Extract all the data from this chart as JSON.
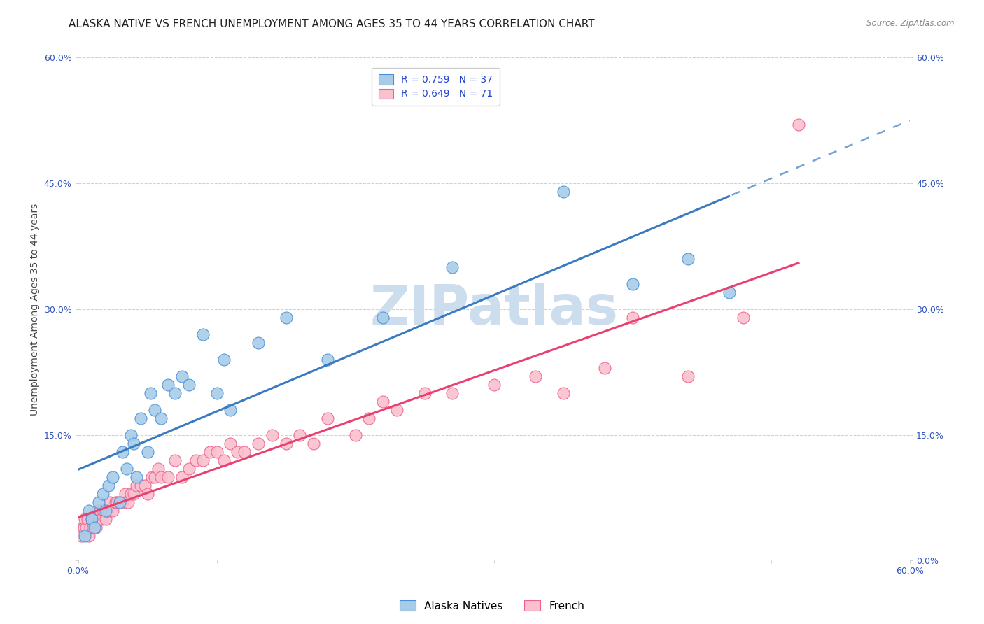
{
  "title": "ALASKA NATIVE VS FRENCH UNEMPLOYMENT AMONG AGES 35 TO 44 YEARS CORRELATION CHART",
  "source": "Source: ZipAtlas.com",
  "ylabel": "Unemployment Among Ages 35 to 44 years",
  "xlim": [
    0.0,
    0.6
  ],
  "ylim": [
    0.0,
    0.6
  ],
  "xticks": [
    0.0,
    0.1,
    0.2,
    0.3,
    0.4,
    0.5,
    0.6
  ],
  "xticklabels": [
    "0.0%",
    "",
    "",
    "",
    "",
    "",
    "60.0%"
  ],
  "yticks": [
    0.0,
    0.15,
    0.3,
    0.45,
    0.6
  ],
  "left_yticklabels": [
    "",
    "15.0%",
    "30.0%",
    "45.0%",
    "60.0%"
  ],
  "right_yticklabels": [
    "0.0%",
    "15.0%",
    "30.0%",
    "45.0%",
    "60.0%"
  ],
  "alaska_color": "#a8cce8",
  "french_color": "#f9c0ce",
  "alaska_edge_color": "#4a90d9",
  "french_edge_color": "#f06090",
  "alaska_line_color": "#3a7abf",
  "french_line_color": "#e84070",
  "alaska_R": 0.759,
  "alaska_N": 37,
  "french_R": 0.649,
  "french_N": 71,
  "alaska_scatter_x": [
    0.005,
    0.008,
    0.01,
    0.012,
    0.015,
    0.018,
    0.02,
    0.022,
    0.025,
    0.03,
    0.032,
    0.035,
    0.038,
    0.04,
    0.042,
    0.045,
    0.05,
    0.052,
    0.055,
    0.06,
    0.065,
    0.07,
    0.075,
    0.08,
    0.09,
    0.1,
    0.105,
    0.11,
    0.13,
    0.15,
    0.18,
    0.22,
    0.27,
    0.35,
    0.4,
    0.44,
    0.47
  ],
  "alaska_scatter_y": [
    0.03,
    0.06,
    0.05,
    0.04,
    0.07,
    0.08,
    0.06,
    0.09,
    0.1,
    0.07,
    0.13,
    0.11,
    0.15,
    0.14,
    0.1,
    0.17,
    0.13,
    0.2,
    0.18,
    0.17,
    0.21,
    0.2,
    0.22,
    0.21,
    0.27,
    0.2,
    0.24,
    0.18,
    0.26,
    0.29,
    0.24,
    0.29,
    0.35,
    0.44,
    0.33,
    0.36,
    0.32
  ],
  "french_scatter_x": [
    0.002,
    0.003,
    0.004,
    0.005,
    0.006,
    0.007,
    0.008,
    0.009,
    0.01,
    0.011,
    0.012,
    0.013,
    0.014,
    0.015,
    0.016,
    0.017,
    0.018,
    0.019,
    0.02,
    0.021,
    0.022,
    0.023,
    0.025,
    0.027,
    0.028,
    0.03,
    0.032,
    0.034,
    0.036,
    0.038,
    0.04,
    0.042,
    0.045,
    0.048,
    0.05,
    0.053,
    0.055,
    0.058,
    0.06,
    0.065,
    0.07,
    0.075,
    0.08,
    0.085,
    0.09,
    0.095,
    0.1,
    0.105,
    0.11,
    0.115,
    0.12,
    0.13,
    0.14,
    0.15,
    0.16,
    0.17,
    0.18,
    0.2,
    0.21,
    0.22,
    0.23,
    0.25,
    0.27,
    0.3,
    0.33,
    0.35,
    0.38,
    0.4,
    0.44,
    0.48,
    0.52
  ],
  "french_scatter_y": [
    0.03,
    0.04,
    0.04,
    0.05,
    0.04,
    0.05,
    0.03,
    0.04,
    0.05,
    0.04,
    0.05,
    0.04,
    0.06,
    0.05,
    0.06,
    0.05,
    0.06,
    0.06,
    0.05,
    0.06,
    0.06,
    0.07,
    0.06,
    0.07,
    0.07,
    0.07,
    0.07,
    0.08,
    0.07,
    0.08,
    0.08,
    0.09,
    0.09,
    0.09,
    0.08,
    0.1,
    0.1,
    0.11,
    0.1,
    0.1,
    0.12,
    0.1,
    0.11,
    0.12,
    0.12,
    0.13,
    0.13,
    0.12,
    0.14,
    0.13,
    0.13,
    0.14,
    0.15,
    0.14,
    0.15,
    0.14,
    0.17,
    0.15,
    0.17,
    0.19,
    0.18,
    0.2,
    0.2,
    0.21,
    0.22,
    0.2,
    0.23,
    0.29,
    0.22,
    0.29,
    0.52
  ],
  "background_color": "#ffffff",
  "grid_color": "#cccccc",
  "watermark_color": "#ccdded",
  "title_fontsize": 11,
  "axis_label_fontsize": 10,
  "tick_fontsize": 9,
  "legend_fontsize": 10
}
